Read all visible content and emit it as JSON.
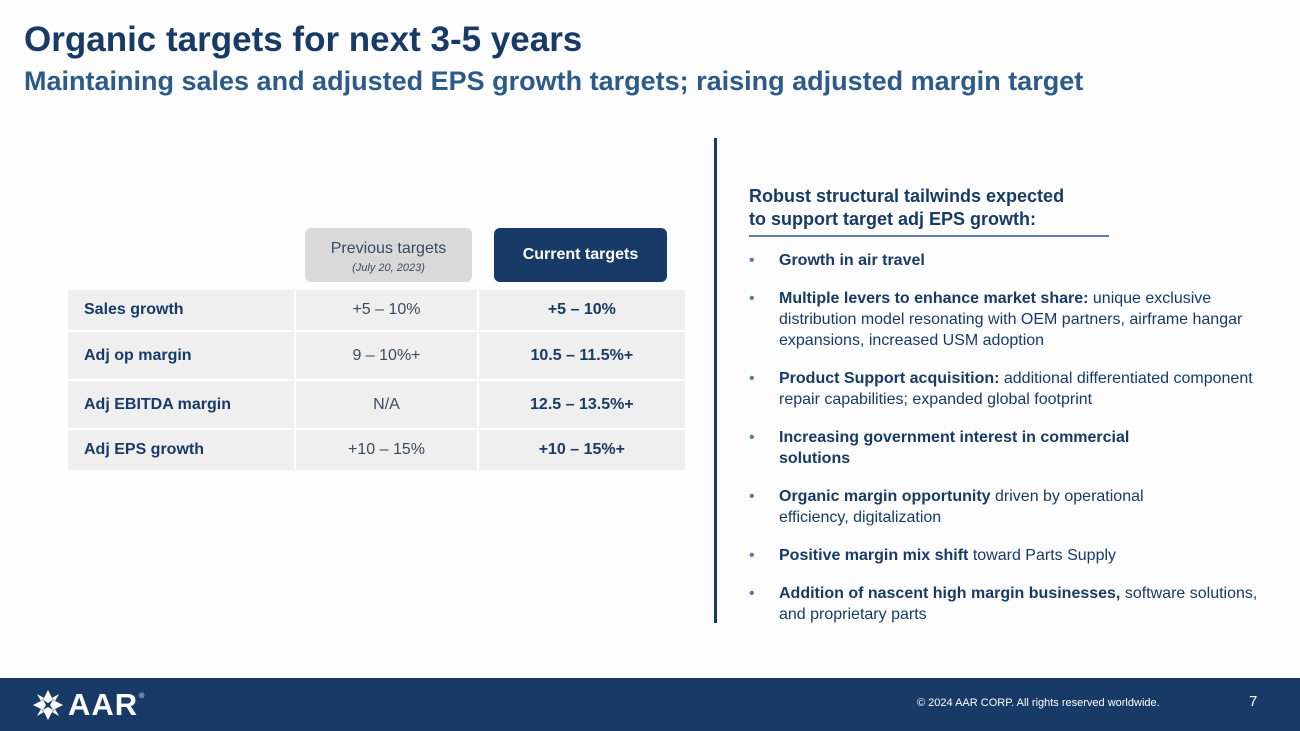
{
  "header": {
    "title": "Organic targets for next 3-5 years",
    "subtitle": "Maintaining sales and adjusted EPS growth targets; raising adjusted margin target"
  },
  "table": {
    "previous_label": "Previous targets",
    "previous_date": "(July 20, 2023)",
    "current_label": "Current targets",
    "rows": [
      {
        "metric": "Sales growth",
        "previous": "+5 – 10%",
        "current": "+5 – 10%"
      },
      {
        "metric": "Adj op margin",
        "previous": "9 – 10%+",
        "current": "10.5 – 11.5%+"
      },
      {
        "metric": "Adj EBITDA margin",
        "previous": "N/A",
        "current": "12.5 – 13.5%+"
      },
      {
        "metric": "Adj EPS growth",
        "previous": "+10 – 15%",
        "current": "+10 – 15%+"
      }
    ]
  },
  "tailwinds": {
    "heading_line1": "Robust structural tailwinds expected",
    "heading_line2": "to support target adj EPS growth:",
    "bullet_char": "•",
    "items": [
      {
        "bold": "Growth in air travel",
        "text": ""
      },
      {
        "bold": "Multiple levers to enhance market share:",
        "text": " unique exclusive distribution model resonating with OEM partners, airframe hangar expansions, increased USM adoption"
      },
      {
        "bold": "Product Support acquisition:",
        "text": " additional differentiated component repair capabilities; expanded global footprint"
      },
      {
        "bold": "Increasing government interest in commercial solutions",
        "text": ""
      },
      {
        "bold": "Organic margin opportunity",
        "text": " driven by operational efficiency, digitalization"
      },
      {
        "bold": "Positive margin mix shift",
        "text": " toward Parts Supply"
      },
      {
        "bold": "Addition of nascent high margin businesses,",
        "text": " software solutions, and proprietary parts"
      }
    ]
  },
  "footer": {
    "logo_text": "AAR",
    "logo_reg": "®",
    "logo_icon": "aar-star-icon",
    "copyright": "© 2024 AAR CORP. All rights reserved worldwide.",
    "page_number": "7"
  },
  "colors": {
    "navy": "#173b66",
    "subtitle_blue": "#2c5a8a",
    "bullet_blue": "#4f7bb0",
    "table_bg": "#efefef",
    "prev_header_bg": "#d9d9d9"
  }
}
